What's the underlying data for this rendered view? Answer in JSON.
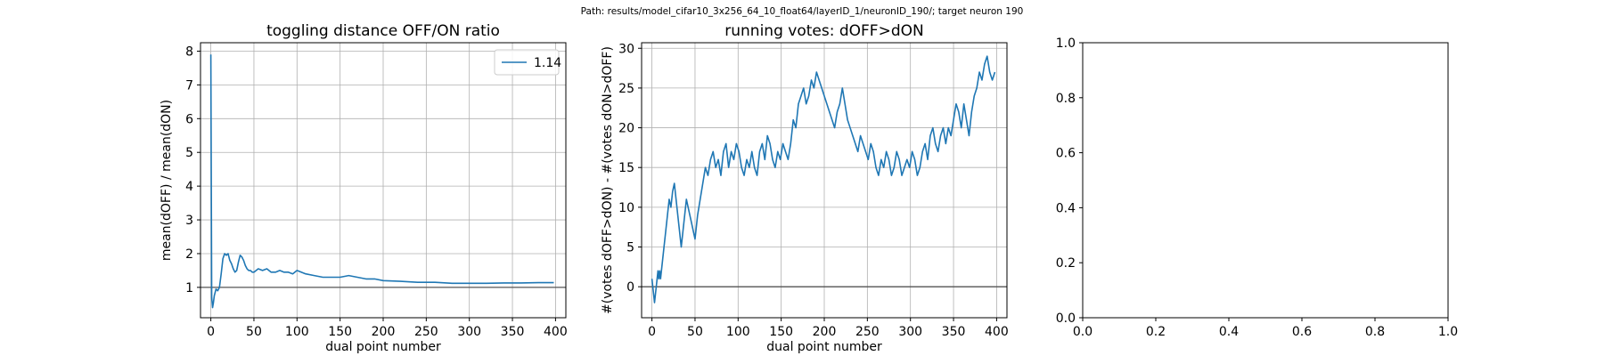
{
  "suptitle": "Path: results/model_cifar10_3x256_64_10_float64/layerID_1/neuronID_190/; target neuron 190",
  "colors": {
    "series": "#1f77b4",
    "refline": "#555555",
    "grid": "#b0b0b0"
  },
  "chart_data": [
    {
      "type": "line",
      "title": "toggling distance OFF/ON ratio",
      "xlabel": "dual point number",
      "ylabel": "mean(dOFF) / mean(dON)",
      "xlim": [
        -12,
        412
      ],
      "ylim": [
        0.1,
        8.25
      ],
      "xticks": [
        0,
        50,
        100,
        150,
        200,
        250,
        300,
        350,
        400
      ],
      "yticks": [
        1,
        2,
        3,
        4,
        5,
        6,
        7,
        8
      ],
      "grid": true,
      "hline": 1,
      "legend": {
        "placement": "top-right",
        "entries": [
          "1.14"
        ]
      },
      "series": [
        {
          "name": "1.14",
          "x": [
            0,
            1,
            2,
            3,
            4,
            6,
            8,
            10,
            12,
            14,
            16,
            18,
            20,
            22,
            24,
            26,
            28,
            30,
            32,
            34,
            36,
            38,
            40,
            42,
            44,
            46,
            48,
            50,
            55,
            60,
            65,
            70,
            75,
            80,
            85,
            90,
            95,
            100,
            110,
            120,
            130,
            140,
            150,
            160,
            170,
            180,
            190,
            200,
            220,
            240,
            260,
            280,
            300,
            320,
            340,
            360,
            380,
            398
          ],
          "y": [
            7.9,
            0.7,
            0.4,
            0.55,
            0.75,
            0.95,
            0.9,
            1.0,
            1.4,
            1.85,
            2.0,
            1.95,
            2.0,
            1.8,
            1.7,
            1.55,
            1.45,
            1.5,
            1.75,
            1.95,
            1.9,
            1.8,
            1.65,
            1.55,
            1.5,
            1.5,
            1.45,
            1.45,
            1.55,
            1.5,
            1.55,
            1.45,
            1.45,
            1.5,
            1.45,
            1.45,
            1.4,
            1.5,
            1.4,
            1.35,
            1.3,
            1.3,
            1.3,
            1.35,
            1.3,
            1.25,
            1.25,
            1.2,
            1.18,
            1.15,
            1.15,
            1.12,
            1.12,
            1.12,
            1.13,
            1.13,
            1.14,
            1.14
          ]
        }
      ]
    },
    {
      "type": "line",
      "title": "running votes: dOFF>dON",
      "xlabel": "dual point number",
      "ylabel": "#(votes dOFF>dON) - #(votes dON>dOFF)",
      "xlim": [
        -12,
        412
      ],
      "ylim": [
        -3.9,
        30.7
      ],
      "xticks": [
        0,
        50,
        100,
        150,
        200,
        250,
        300,
        350,
        400
      ],
      "yticks": [
        0,
        5,
        10,
        15,
        20,
        25,
        30
      ],
      "grid": true,
      "hline": 0,
      "series": [
        {
          "name": "",
          "x": [
            0,
            1,
            2,
            3,
            4,
            5,
            6,
            7,
            8,
            9,
            10,
            12,
            14,
            16,
            18,
            20,
            22,
            24,
            26,
            28,
            30,
            32,
            34,
            36,
            38,
            40,
            42,
            44,
            46,
            48,
            50,
            53,
            56,
            59,
            62,
            65,
            68,
            71,
            74,
            77,
            80,
            83,
            86,
            89,
            92,
            95,
            98,
            101,
            104,
            107,
            110,
            113,
            116,
            119,
            122,
            125,
            128,
            131,
            134,
            137,
            140,
            143,
            146,
            149,
            152,
            155,
            158,
            161,
            164,
            167,
            170,
            173,
            176,
            179,
            182,
            185,
            188,
            191,
            194,
            197,
            200,
            203,
            206,
            209,
            212,
            215,
            218,
            221,
            224,
            227,
            230,
            233,
            236,
            239,
            242,
            245,
            248,
            251,
            254,
            257,
            260,
            263,
            266,
            269,
            272,
            275,
            278,
            281,
            284,
            287,
            290,
            293,
            296,
            299,
            302,
            305,
            308,
            311,
            314,
            317,
            320,
            323,
            326,
            329,
            332,
            335,
            338,
            341,
            344,
            347,
            350,
            353,
            356,
            359,
            362,
            365,
            368,
            371,
            374,
            377,
            380,
            383,
            386,
            389,
            392,
            395,
            398
          ],
          "y": [
            1,
            0,
            -1,
            -2,
            -1,
            0,
            1,
            2,
            1,
            2,
            1,
            3,
            5,
            7,
            9,
            11,
            10,
            12,
            13,
            11,
            9,
            7,
            5,
            7,
            9,
            11,
            10,
            9,
            8,
            7,
            6,
            9,
            11,
            13,
            15,
            14,
            16,
            17,
            15,
            16,
            14,
            17,
            18,
            15,
            17,
            16,
            18,
            17,
            15,
            14,
            16,
            15,
            17,
            15,
            14,
            17,
            18,
            16,
            19,
            18,
            16,
            15,
            17,
            16,
            18,
            17,
            16,
            18,
            21,
            20,
            23,
            24,
            25,
            23,
            24,
            26,
            25,
            27,
            26,
            25,
            24,
            23,
            22,
            21,
            20,
            22,
            23,
            25,
            23,
            21,
            20,
            19,
            18,
            17,
            19,
            18,
            17,
            16,
            18,
            17,
            15,
            14,
            16,
            15,
            17,
            16,
            14,
            15,
            17,
            16,
            14,
            15,
            16,
            15,
            17,
            16,
            14,
            15,
            17,
            18,
            16,
            19,
            20,
            18,
            17,
            19,
            20,
            18,
            20,
            19,
            21,
            23,
            22,
            20,
            23,
            21,
            19,
            22,
            24,
            25,
            27,
            26,
            28,
            29,
            27,
            26,
            27
          ]
        }
      ]
    },
    {
      "type": "line",
      "title": "",
      "xlabel": "",
      "ylabel": "",
      "xlim": [
        0,
        1
      ],
      "ylim": [
        0,
        1
      ],
      "xticks": [
        "0.0",
        "0.2",
        "0.4",
        "0.6",
        "0.8",
        "1.0"
      ],
      "yticks": [
        "0.0",
        "0.2",
        "0.4",
        "0.6",
        "0.8",
        "1.0"
      ],
      "grid": false,
      "series": []
    }
  ]
}
